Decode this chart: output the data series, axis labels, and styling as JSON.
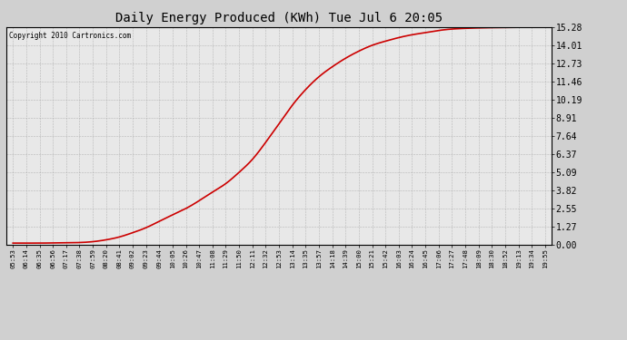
{
  "title": "Daily Energy Produced (KWh) Tue Jul 6 20:05",
  "copyright_text": "Copyright 2010 Cartronics.com",
  "line_color": "#cc0000",
  "background_color": "#d0d0d0",
  "plot_bg_color": "#e8e8e8",
  "grid_color": "#aaaaaa",
  "yticks": [
    0.0,
    1.27,
    2.55,
    3.82,
    5.09,
    6.37,
    7.64,
    8.91,
    10.19,
    11.46,
    12.73,
    14.01,
    15.28
  ],
  "ymax": 15.28,
  "ymin": 0.0,
  "x_labels": [
    "05:53",
    "06:14",
    "06:35",
    "06:56",
    "07:17",
    "07:38",
    "07:59",
    "08:20",
    "08:41",
    "09:02",
    "09:23",
    "09:44",
    "10:05",
    "10:26",
    "10:47",
    "11:08",
    "11:29",
    "11:50",
    "12:11",
    "12:32",
    "12:53",
    "13:14",
    "13:35",
    "13:57",
    "14:18",
    "14:39",
    "15:00",
    "15:21",
    "15:42",
    "16:03",
    "16:24",
    "16:45",
    "17:06",
    "17:27",
    "17:48",
    "18:09",
    "18:30",
    "18:52",
    "19:13",
    "19:34",
    "19:55"
  ],
  "line_width": 1.2,
  "curve_points": [
    0.12,
    0.12,
    0.12,
    0.13,
    0.14,
    0.16,
    0.22,
    0.35,
    0.55,
    0.85,
    1.2,
    1.65,
    2.1,
    2.55,
    3.1,
    3.7,
    4.3,
    5.09,
    6.0,
    7.2,
    8.5,
    9.8,
    10.9,
    11.8,
    12.5,
    13.1,
    13.6,
    14.01,
    14.3,
    14.55,
    14.75,
    14.9,
    15.05,
    15.15,
    15.2,
    15.23,
    15.25,
    15.26,
    15.27,
    15.27,
    15.28
  ]
}
